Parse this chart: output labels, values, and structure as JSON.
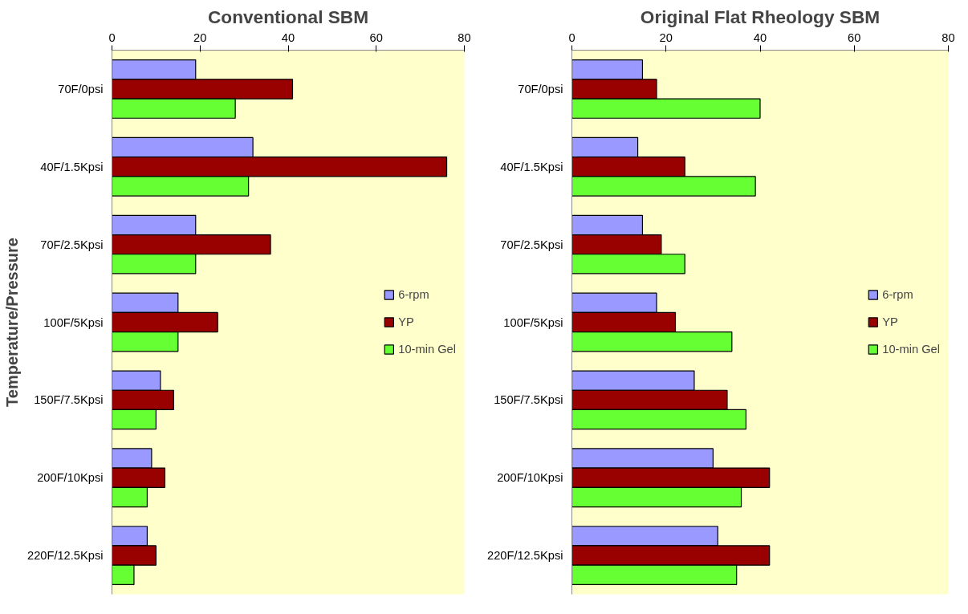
{
  "chart_data": [
    {
      "type": "bar",
      "orientation": "horizontal",
      "title": "Conventional SBM",
      "ylabel": "Temperature/Pressure",
      "categories": [
        "70F/0psi",
        "40F/1.5Kpsi",
        "70F/2.5Kpsi",
        "100F/5Kpsi",
        "150F/7.5Kpsi",
        "200F/10Kpsi",
        "220F/12.5Kpsi"
      ],
      "series": [
        {
          "name": "6-rpm",
          "color": "#9999ff",
          "values": [
            19,
            32,
            19,
            15,
            11,
            9,
            8
          ]
        },
        {
          "name": "YP",
          "color": "#990000",
          "values": [
            41,
            76,
            36,
            24,
            14,
            12,
            10
          ]
        },
        {
          "name": "10-min Gel",
          "color": "#66ff33",
          "values": [
            28,
            31,
            19,
            15,
            10,
            8,
            5
          ]
        }
      ],
      "xlim": [
        0,
        80
      ],
      "xticks": [
        0,
        20,
        40,
        60,
        80
      ],
      "legend": "right",
      "grid": false
    },
    {
      "type": "bar",
      "orientation": "horizontal",
      "title": "Original Flat Rheology SBM",
      "categories": [
        "70F/0psi",
        "40F/1.5Kpsi",
        "70F/2.5Kpsi",
        "100F/5Kpsi",
        "150F/7.5Kpsi",
        "200F/10Kpsi",
        "220F/12.5Kpsi"
      ],
      "series": [
        {
          "name": "6-rpm",
          "color": "#9999ff",
          "values": [
            15,
            14,
            15,
            18,
            26,
            30,
            31
          ]
        },
        {
          "name": "YP",
          "color": "#990000",
          "values": [
            18,
            24,
            19,
            22,
            33,
            42,
            42
          ]
        },
        {
          "name": "10-min Gel",
          "color": "#66ff33",
          "values": [
            40,
            39,
            24,
            34,
            37,
            36,
            35
          ]
        }
      ],
      "xlim": [
        0,
        80
      ],
      "xticks": [
        0,
        20,
        40,
        60,
        80
      ],
      "legend": "right",
      "grid": false
    }
  ]
}
